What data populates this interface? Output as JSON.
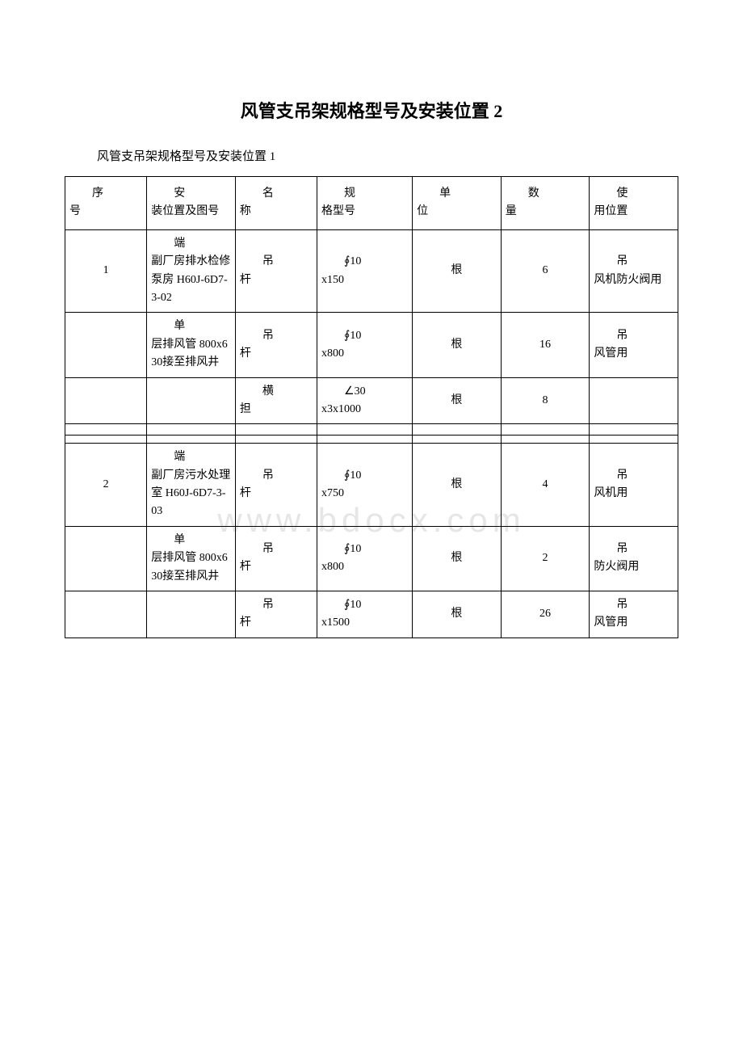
{
  "title": "风管支吊架规格型号及安装位置 2",
  "subtitle": "风管支吊架规格型号及安装位置 1",
  "watermark": "www.bdocx.com",
  "colors": {
    "background": "#ffffff",
    "text": "#000000",
    "border": "#000000",
    "watermark": "#e6e6e6"
  },
  "typography": {
    "body_font": "SimSun",
    "title_size_pt": 16,
    "subtitle_size_pt": 11,
    "cell_size_pt": 10
  },
  "headers": {
    "seq_line1": "序",
    "seq_line2": "号",
    "pos_line1": "安",
    "pos_line2": "装位置及图号",
    "name_line1": "名",
    "name_line2": "称",
    "spec_line1": "规",
    "spec_line2": "格型号",
    "unit_line1": "单",
    "unit_line2": "位",
    "qty_line1": "数",
    "qty_line2": "量",
    "use_line1": "使",
    "use_line2": "用位置"
  },
  "rows": [
    {
      "seq": "1",
      "pos_lead": "端",
      "pos_rest": "副厂房排水检修泵房 H60J-6D7-3-02",
      "name_lead": "吊",
      "name_rest": "杆",
      "spec_l1": "∮10",
      "spec_l2": "x150",
      "unit": "根",
      "qty": "6",
      "use_lead": "吊",
      "use_rest": "风机防火阀用"
    },
    {
      "seq": "",
      "pos_lead": "单",
      "pos_rest": "层排风管 800x630接至排风井",
      "name_lead": "吊",
      "name_rest": "杆",
      "spec_l1": "∮10",
      "spec_l2": "x800",
      "unit": "根",
      "qty": "16",
      "use_lead": "吊",
      "use_rest": "风管用"
    },
    {
      "seq": "",
      "pos_lead": "",
      "pos_rest": "",
      "name_lead": "横",
      "name_rest": "担",
      "spec_l1": "∠30",
      "spec_l2": "x3x1000",
      "unit": "根",
      "qty": "8",
      "use_lead": "",
      "use_rest": ""
    },
    {
      "seq": "2",
      "pos_lead": "端",
      "pos_rest": "副厂房污水处理室 H60J-6D7-3-03",
      "name_lead": "吊",
      "name_rest": "杆",
      "spec_l1": "∮10",
      "spec_l2": "x750",
      "unit": "根",
      "qty": "4",
      "use_lead": "吊",
      "use_rest": "风机用"
    },
    {
      "seq": "",
      "pos_lead": "单",
      "pos_rest": "层排风管 800x630接至排风井",
      "name_lead": "吊",
      "name_rest": "杆",
      "spec_l1": "∮10",
      "spec_l2": "x800",
      "unit": "根",
      "qty": "2",
      "use_lead": "吊",
      "use_rest": "防火阀用"
    },
    {
      "seq": "",
      "pos_lead": "",
      "pos_rest": "",
      "name_lead": "吊",
      "name_rest": "杆",
      "spec_l1": "∮10",
      "spec_l2": "x1500",
      "unit": "根",
      "qty": "26",
      "use_lead": "吊",
      "use_rest": "风管用"
    }
  ]
}
